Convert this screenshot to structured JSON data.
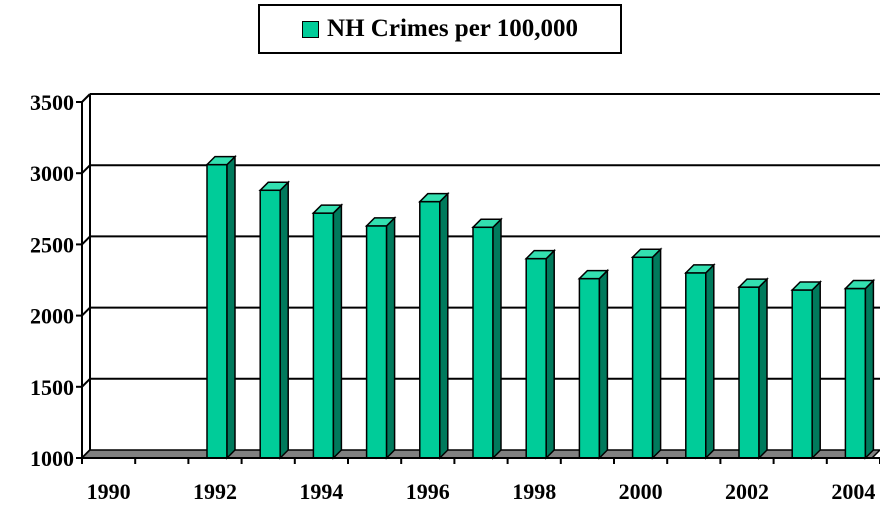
{
  "chart_data": {
    "type": "bar",
    "title": "",
    "xlabel": "",
    "ylabel": "",
    "legend": {
      "position": "top-center",
      "entries": [
        "NH Crimes per 100,000"
      ]
    },
    "categories": [
      "1990",
      "1991",
      "1992",
      "1993",
      "1994",
      "1995",
      "1996",
      "1997",
      "1998",
      "1999",
      "2000",
      "2001",
      "2002",
      "2003",
      "2004"
    ],
    "x_tick_labels": [
      "1990",
      "1992",
      "1994",
      "1996",
      "1998",
      "2000",
      "2002",
      "2004"
    ],
    "series": [
      {
        "name": "NH Crimes per 100,000",
        "color": "#00cc99",
        "values": [
          null,
          null,
          3060,
          2880,
          2720,
          2630,
          2800,
          2620,
          2400,
          2260,
          2410,
          2300,
          2200,
          2180,
          2190
        ]
      }
    ],
    "ylim": [
      1000,
      3500
    ],
    "y_ticks": [
      1000,
      1500,
      2000,
      2500,
      3000,
      3500
    ],
    "grid": true
  }
}
